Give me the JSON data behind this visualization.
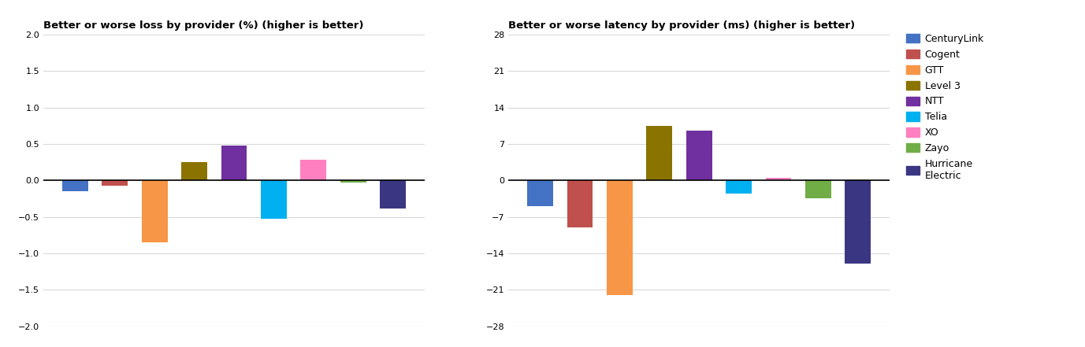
{
  "providers": [
    "CenturyLink",
    "Cogent",
    "GTT",
    "Level 3",
    "NTT",
    "Telia",
    "XO",
    "Zayo",
    "Hurricane Electric"
  ],
  "colors": [
    "#4472C4",
    "#C0504D",
    "#F79646",
    "#8B7300",
    "#7030A0",
    "#00B0F0",
    "#FF80C0",
    "#70AD47",
    "#3B3682"
  ],
  "loss_values": [
    -0.15,
    -0.07,
    -0.85,
    0.25,
    0.48,
    -0.53,
    0.28,
    -0.03,
    -0.38
  ],
  "latency_values": [
    -5.0,
    -9.0,
    -22.0,
    10.5,
    9.5,
    -2.5,
    0.5,
    -3.5,
    -16.0
  ],
  "loss_title": "Better or worse loss by provider (%) (higher is better)",
  "latency_title": "Better or worse latency by provider (ms) (higher is better)",
  "loss_ylim": [
    -2.0,
    2.0
  ],
  "loss_yticks": [
    -2.0,
    -1.5,
    -1.0,
    -0.5,
    0.0,
    0.5,
    1.0,
    1.5,
    2.0
  ],
  "latency_ylim": [
    -28,
    28
  ],
  "latency_yticks": [
    -28,
    -21,
    -14,
    -7,
    0,
    7,
    14,
    21,
    28
  ],
  "legend_labels": [
    "CenturyLink",
    "Cogent",
    "GTT",
    "Level 3",
    "NTT",
    "Telia",
    "XO",
    "Zayo",
    "Hurricane\nElectric"
  ],
  "background_color": "#FFFFFF",
  "grid_color": "#D9D9D9",
  "title_fontsize": 9.5,
  "tick_fontsize": 8,
  "legend_fontsize": 9
}
